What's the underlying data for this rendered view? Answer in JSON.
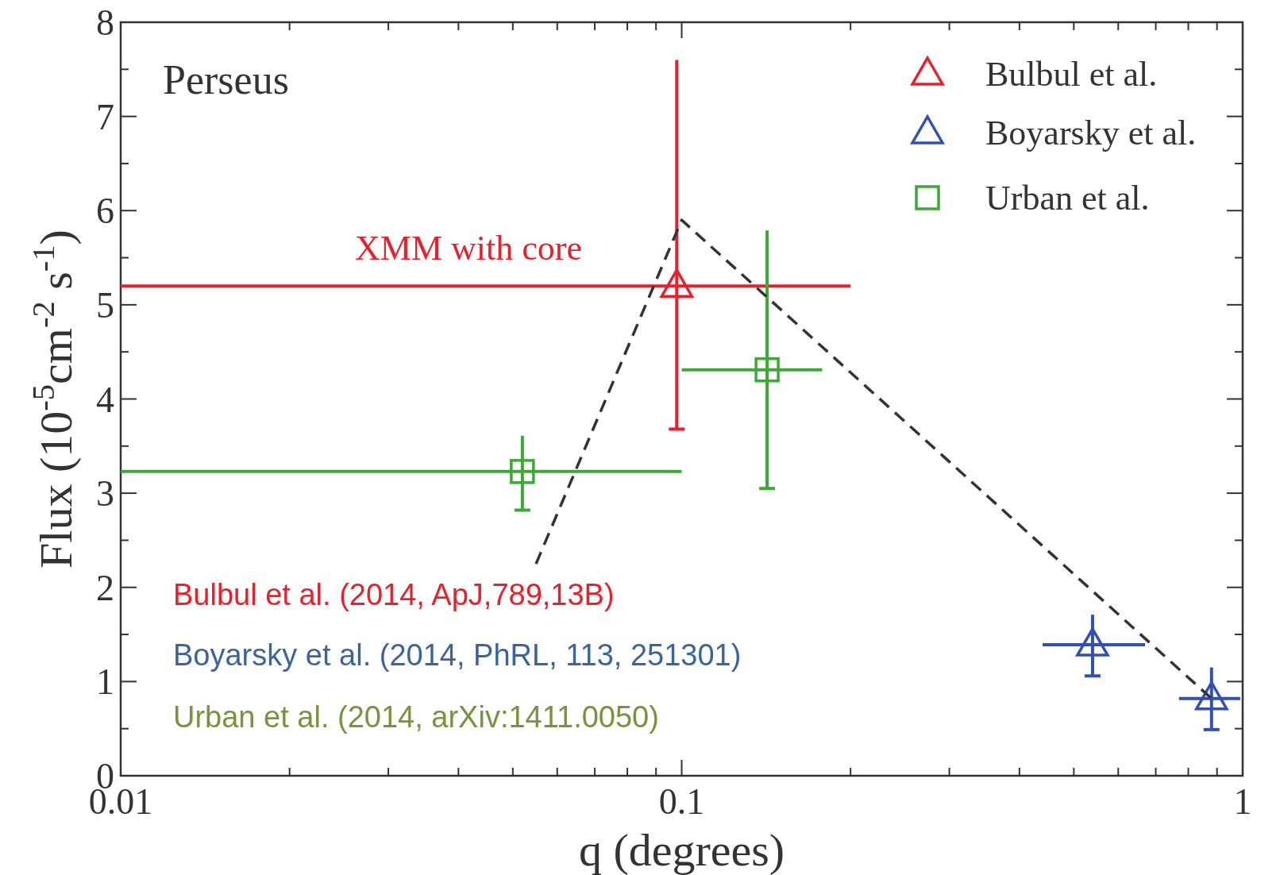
{
  "chart_data": {
    "type": "scatter",
    "title": "Perseus",
    "xlabel": "q (degrees)",
    "ylabel": "Flux (10$^{-5}$cm$^{-2}$ s$^{-1}$)",
    "log": "x",
    "xlim": [
      0.01,
      1
    ],
    "ylim": [
      0,
      8
    ],
    "xticks": [
      0.01,
      {
        "value": 0.02,
        "label": null
      },
      {
        "value": 0.03,
        "label": null
      },
      {
        "value": 0.04,
        "label": null
      },
      {
        "value": 0.05,
        "label": null
      },
      {
        "value": 0.06,
        "label": null
      },
      {
        "value": 0.07,
        "label": null
      },
      {
        "value": 0.08,
        "label": null
      },
      {
        "value": 0.09,
        "label": null
      },
      0.1,
      {
        "value": 0.2,
        "label": null
      },
      {
        "value": 0.3,
        "label": null
      },
      {
        "value": 0.4,
        "label": null
      },
      {
        "value": 0.5,
        "label": null
      },
      {
        "value": 0.6,
        "label": null
      },
      {
        "value": 0.7,
        "label": null
      },
      {
        "value": 0.8,
        "label": null
      },
      {
        "value": 0.9,
        "label": null
      },
      1
    ],
    "yticks": [
      0,
      {
        "value": 0.5,
        "label": null
      },
      1,
      {
        "value": 1.5,
        "label": null
      },
      2,
      {
        "value": 2.5,
        "label": null
      },
      3,
      {
        "value": 3.5,
        "label": null
      },
      4,
      {
        "value": 4.5,
        "label": null
      },
      5,
      {
        "value": 5.5,
        "label": null
      },
      6,
      {
        "value": 6.5,
        "label": null
      },
      7,
      {
        "value": 7.5,
        "label": null
      },
      8
    ],
    "grid": false,
    "legend": "top right",
    "annotations": [
      "XMM with core",
      "Bulbul et al. (2014, ApJ,789,13B)",
      "Boyarsky et al. (2014, PhRL, 113, 251301)",
      "Urban et al. (2014, arXiv:1411.0050)"
    ],
    "series": [
      {
        "name": "Bulbul et al.",
        "color": "#e8202a",
        "marker": "triangle",
        "x": [
          0.098
        ],
        "values": [
          5.2
        ],
        "errors": [
          [
            3.68,
            7.6
          ]
        ],
        "xerrors": [
          [
            0.01,
            0.2
          ]
        ]
      },
      {
        "name": "Boyarsky et al.",
        "color": "#3050b8",
        "marker": "triangle",
        "x": [
          0.54,
          0.88
        ],
        "values": [
          1.39,
          0.82
        ],
        "errors": [
          [
            1.06,
            1.71
          ],
          [
            0.49,
            1.15
          ]
        ],
        "xerrors": [
          [
            0.44,
            0.67
          ],
          [
            0.77,
            0.99
          ]
        ]
      },
      {
        "name": "Urban et al.",
        "color": "#3aaa35",
        "marker": "square",
        "x": [
          0.052,
          0.142
        ],
        "values": [
          3.23,
          4.31
        ],
        "errors": [
          [
            2.82,
            3.61
          ],
          [
            3.05,
            5.79
          ]
        ],
        "xerrors": [
          [
            0.01,
            0.1
          ],
          [
            0.1,
            0.178
          ]
        ]
      },
      {
        "type": "line",
        "color": "#333333",
        "line_style": "dashed",
        "marker": "none",
        "x": [
          0.055,
          0.1,
          0.88
        ],
        "values": [
          2.25,
          5.9,
          0.82
        ]
      }
    ]
  }
}
